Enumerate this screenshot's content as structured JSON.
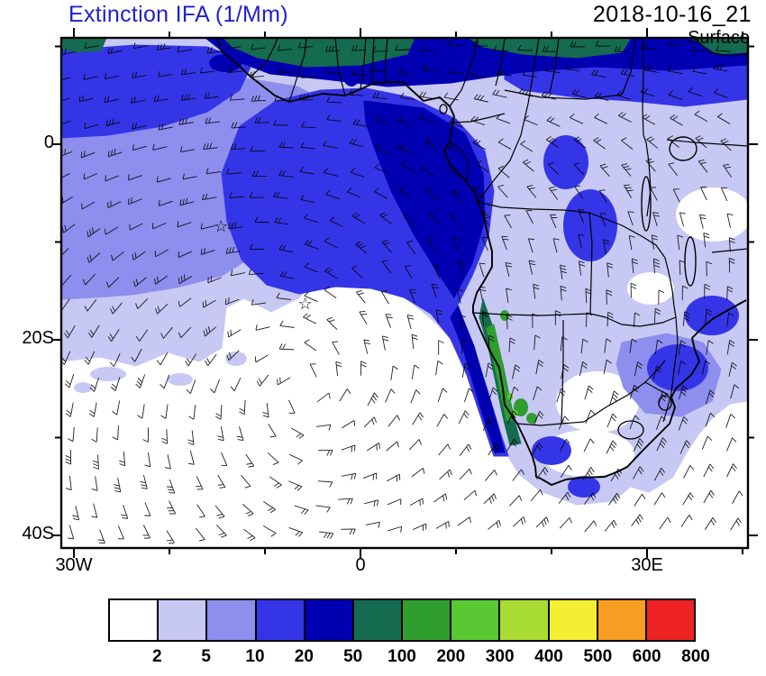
{
  "header": {
    "title": "Extinction IFA (1/Mm)",
    "datetime": "2018-10-16_21",
    "level": "Surface",
    "title_color": "#2121cc"
  },
  "axes": {
    "y_tick_labels": [
      "0",
      "20S",
      "40S"
    ],
    "x_tick_labels": [
      "30W",
      "0",
      "30E"
    ]
  },
  "colorbar": {
    "levels": [
      "2",
      "5",
      "10",
      "20",
      "50",
      "100",
      "200",
      "300",
      "400",
      "500",
      "600",
      "800"
    ],
    "colors": [
      "#ffffff",
      "#c8c8f5",
      "#8e8eee",
      "#3535e8",
      "#0000b2",
      "#156b4f",
      "#2f9e2f",
      "#5ac832",
      "#a8dc32",
      "#f5ee32",
      "#f79d22",
      "#ee2222"
    ]
  },
  "chart_data": {
    "type": "heatmap",
    "title": "Extinction IFA (1/Mm)",
    "variable": "aerosol_extinction",
    "units": "1/Mm",
    "time": "2018-10-16_21",
    "level": "Surface",
    "domain": {
      "lon_min": -31,
      "lon_max": 40.5,
      "lat_min": -41.3,
      "lat_max": 10.9
    },
    "contour_levels": [
      2,
      5,
      10,
      20,
      50,
      100,
      200,
      300,
      400,
      500,
      600,
      800
    ],
    "palette": [
      "#ffffff",
      "#c8c8f5",
      "#8e8eee",
      "#3535e8",
      "#0000b2",
      "#156b4f",
      "#2f9e2f",
      "#5ac832",
      "#a8dc32",
      "#f5ee32",
      "#f79d22",
      "#ee2222"
    ],
    "overlays": [
      "surface wind barbs",
      "coastlines",
      "country borders",
      "star station markers"
    ],
    "coarse_field": {
      "lons": [
        -30,
        -20,
        -10,
        0,
        10,
        20,
        30,
        40
      ],
      "lats": [
        10,
        0,
        -10,
        -20,
        -30,
        -40
      ],
      "values_1_per_Mm": [
        [
          40,
          60,
          70,
          90,
          70,
          40,
          30,
          25
        ],
        [
          8,
          15,
          30,
          45,
          35,
          10,
          6,
          5
        ],
        [
          4,
          6,
          10,
          25,
          60,
          6,
          4,
          7
        ],
        [
          2,
          3,
          3,
          6,
          90,
          3,
          6,
          12
        ],
        [
          1,
          1,
          1,
          2,
          12,
          4,
          8,
          10
        ],
        [
          1,
          1,
          1,
          1,
          2,
          3,
          3,
          3
        ]
      ]
    },
    "markers": [
      {
        "symbol": "star",
        "lon": -14.6,
        "lat": -8.4
      },
      {
        "symbol": "star",
        "lon": -5.8,
        "lat": -16.3
      }
    ]
  }
}
